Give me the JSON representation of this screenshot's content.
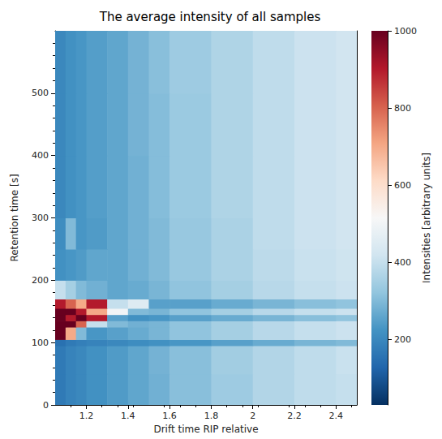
{
  "chart_data": {
    "type": "heatmap",
    "title": "The average intensity of all samples",
    "x_label": "Drift time RIP relative",
    "y_label": "Retention time [s]",
    "xlim": [
      1.05,
      2.5
    ],
    "ylim": [
      0,
      600
    ],
    "xticks": [
      1.2,
      1.4,
      1.6,
      1.8,
      2.0,
      2.2,
      2.4
    ],
    "yticks": [
      0,
      100,
      200,
      300,
      400,
      500
    ],
    "grid": false,
    "x_edges": [
      1.05,
      1.1,
      1.15,
      1.2,
      1.3,
      1.4,
      1.5,
      1.6,
      1.8,
      2.0,
      2.2,
      2.4,
      2.5
    ],
    "y_edges": [
      0,
      50,
      95,
      105,
      125,
      135,
      145,
      155,
      170,
      200,
      250,
      300,
      400,
      500,
      600
    ],
    "values": [
      [
        170,
        190,
        200,
        220,
        240,
        260,
        280,
        310,
        340,
        370,
        390,
        400
      ],
      [
        170,
        190,
        200,
        220,
        240,
        260,
        285,
        310,
        345,
        370,
        390,
        405
      ],
      [
        150,
        170,
        180,
        190,
        200,
        210,
        220,
        230,
        250,
        270,
        290,
        300
      ],
      [
        1000,
        700,
        300,
        230,
        250,
        270,
        290,
        320,
        350,
        380,
        400,
        410
      ],
      [
        1000,
        1000,
        800,
        400,
        300,
        280,
        290,
        320,
        350,
        380,
        400,
        410
      ],
      [
        1000,
        900,
        1000,
        900,
        250,
        220,
        230,
        250,
        270,
        290,
        310,
        320
      ],
      [
        1000,
        1000,
        900,
        700,
        500,
        300,
        290,
        320,
        350,
        380,
        400,
        410
      ],
      [
        900,
        800,
        700,
        900,
        400,
        450,
        250,
        250,
        270,
        290,
        310,
        320
      ],
      [
        400,
        350,
        300,
        280,
        260,
        270,
        290,
        320,
        350,
        380,
        400,
        410
      ],
      [
        220,
        230,
        240,
        260,
        260,
        280,
        300,
        330,
        360,
        385,
        405,
        415
      ],
      [
        210,
        300,
        230,
        240,
        260,
        280,
        300,
        330,
        360,
        390,
        410,
        420
      ],
      [
        200,
        220,
        230,
        245,
        260,
        280,
        305,
        335,
        365,
        390,
        410,
        420
      ],
      [
        200,
        220,
        230,
        245,
        260,
        285,
        305,
        335,
        365,
        390,
        410,
        420
      ],
      [
        200,
        220,
        230,
        245,
        260,
        285,
        310,
        340,
        365,
        390,
        410,
        420
      ]
    ],
    "colorbar": {
      "label": "Intensities [arbitrary units]",
      "range": [
        30,
        1000
      ],
      "ticks": [
        200,
        400,
        600,
        800,
        1000
      ]
    }
  }
}
